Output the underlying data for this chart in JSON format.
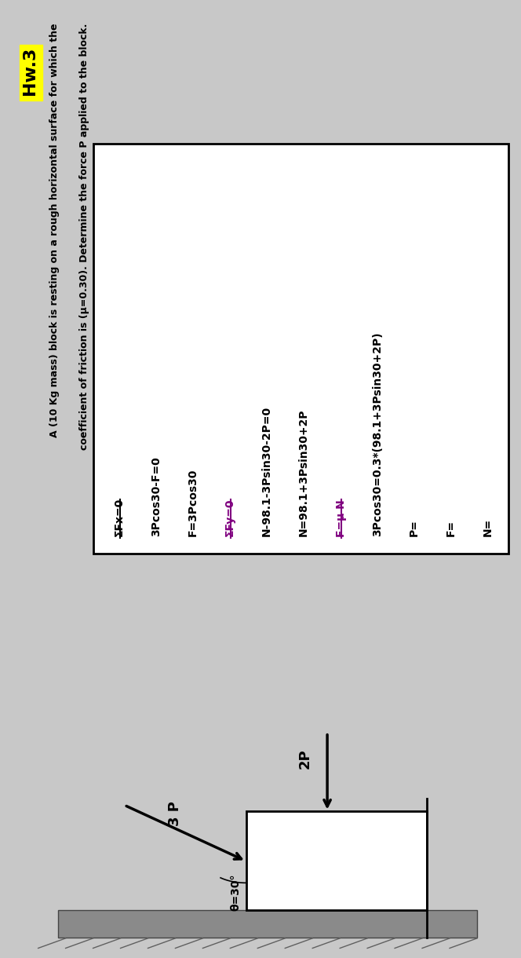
{
  "title": "Hw.3",
  "title_bg": "#FFFF00",
  "problem_line1": "A (10 Kg mass) block is resting on a rough horizontal surface for which the",
  "problem_line2": "coefficient of friction is (μ=0.30). Determine the force P applied to the block.",
  "bg_color": "#c8c8c8",
  "box_bg": "#ffffff",
  "eq_lines": [
    [
      "ΣFx=0",
      "black",
      true
    ],
    [
      "3Pcos30-F=0",
      "black",
      false
    ],
    [
      "F=3Pcos30",
      "black",
      false
    ],
    [
      "ΣFy=0",
      "purple",
      true
    ],
    [
      "N-98.1-3Psin30-2P=0",
      "black",
      false
    ],
    [
      "N=98.1+3Psin30+2P",
      "black",
      false
    ],
    [
      "F=μ N",
      "purple",
      true
    ],
    [
      "3Pcos30=0.3*(98.1+3Psin30+2P)",
      "black",
      false
    ],
    [
      "P=",
      "black",
      false
    ],
    [
      "F=",
      "black",
      false
    ],
    [
      "N=",
      "black",
      false
    ]
  ],
  "force_3P_label": "3 P",
  "force_2P_label": "2P",
  "angle_label": "θ=30°",
  "wall_color": "#8a8a8a",
  "wall_hatch_color": "#606060"
}
